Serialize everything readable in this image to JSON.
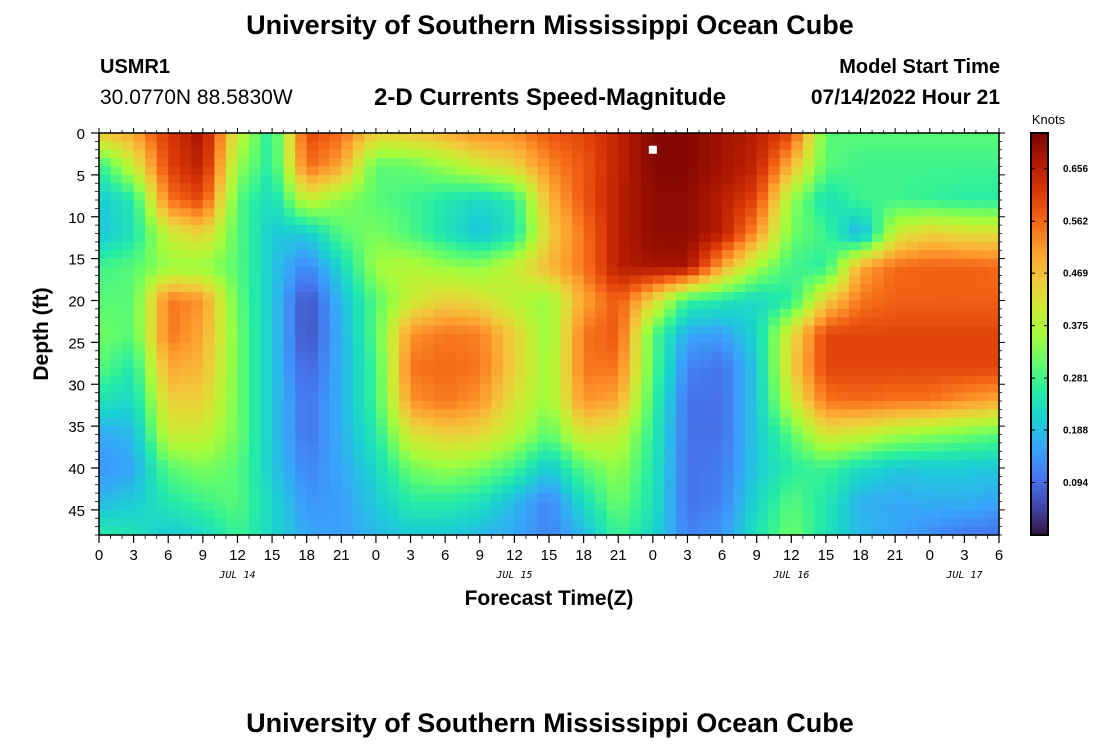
{
  "header": {
    "title": "University of Southern Mississippi Ocean Cube",
    "station_id": "USMR1",
    "coords": "30.0770N  88.5830W",
    "subtitle": "2-D Currents Speed-Magnitude",
    "model_label": "Model Start Time",
    "model_time": "07/14/2022 Hour 21"
  },
  "footer": {
    "title": "University of Southern Mississippi Ocean Cube"
  },
  "chart_data": {
    "type": "heatmap",
    "subtitle": "2-D Currents Speed-Magnitude",
    "xlabel": "Forecast Time(Z)",
    "ylabel": "Depth (ft)",
    "x_hours_range": [
      0,
      78
    ],
    "x_tick_labels": [
      "0",
      "3",
      "6",
      "9",
      "12",
      "15",
      "18",
      "21",
      "0",
      "3",
      "6",
      "9",
      "12",
      "15",
      "18",
      "21",
      "0",
      "3",
      "6",
      "9",
      "12",
      "15",
      "18",
      "21",
      "0",
      "3",
      "6"
    ],
    "x_tick_start_hour": 0,
    "x_tick_step_hours": 3,
    "date_labels": [
      {
        "label": "JUL 14",
        "at_hour": 12
      },
      {
        "label": "JUL 15",
        "at_hour": 36
      },
      {
        "label": "JUL 16",
        "at_hour": 60
      },
      {
        "label": "JUL 17",
        "at_hour": 75
      }
    ],
    "y_ticks": [
      0,
      5,
      10,
      15,
      20,
      25,
      30,
      35,
      40,
      45
    ],
    "y_range": [
      0,
      48
    ],
    "y_inverted": true,
    "colorbar": {
      "unit": "Knots",
      "ticks": [
        "0.656",
        "0.562",
        "0.469",
        "0.375",
        "0.281",
        "0.188",
        "0.094"
      ],
      "range": [
        0.0,
        0.72
      ],
      "colors": [
        "#30123b",
        "#4145ab",
        "#4675ed",
        "#39a2fc",
        "#1bcfd4",
        "#24eca6",
        "#61fc6c",
        "#a4fc3b",
        "#d1e834",
        "#f3c63a",
        "#fe9b2d",
        "#f36315",
        "#d93806",
        "#b11901",
        "#7a0402"
      ]
    },
    "marker": {
      "hour": 48,
      "depth": 2
    },
    "grid": {
      "cols_hours": [
        0,
        3,
        6,
        9,
        12,
        15,
        18,
        21,
        24,
        27,
        30,
        33,
        36,
        39,
        42,
        45,
        48,
        51,
        54,
        57,
        60,
        63,
        66,
        69,
        72,
        75,
        78
      ],
      "rows_depth": [
        0,
        4,
        8,
        12,
        16,
        20,
        24,
        28,
        32,
        36,
        40,
        44,
        48
      ],
      "values": [
        [
          0.46,
          0.5,
          0.62,
          0.68,
          0.4,
          0.25,
          0.6,
          0.56,
          0.45,
          0.46,
          0.49,
          0.53,
          0.53,
          0.58,
          0.6,
          0.65,
          0.71,
          0.71,
          0.68,
          0.66,
          0.6,
          0.3,
          0.3,
          0.3,
          0.3,
          0.3,
          0.3
        ],
        [
          0.26,
          0.4,
          0.6,
          0.66,
          0.35,
          0.25,
          0.56,
          0.5,
          0.3,
          0.31,
          0.35,
          0.4,
          0.44,
          0.53,
          0.58,
          0.65,
          0.71,
          0.71,
          0.68,
          0.65,
          0.48,
          0.3,
          0.28,
          0.28,
          0.28,
          0.28,
          0.28
        ],
        [
          0.2,
          0.25,
          0.55,
          0.6,
          0.3,
          0.22,
          0.4,
          0.34,
          0.3,
          0.28,
          0.25,
          0.22,
          0.26,
          0.48,
          0.58,
          0.66,
          0.7,
          0.7,
          0.66,
          0.6,
          0.35,
          0.23,
          0.28,
          0.28,
          0.27,
          0.26,
          0.26
        ],
        [
          0.19,
          0.24,
          0.4,
          0.45,
          0.3,
          0.2,
          0.2,
          0.3,
          0.33,
          0.29,
          0.24,
          0.19,
          0.24,
          0.45,
          0.55,
          0.66,
          0.7,
          0.7,
          0.66,
          0.52,
          0.32,
          0.28,
          0.16,
          0.4,
          0.45,
          0.43,
          0.43
        ],
        [
          0.28,
          0.3,
          0.35,
          0.35,
          0.3,
          0.2,
          0.12,
          0.22,
          0.36,
          0.38,
          0.35,
          0.34,
          0.4,
          0.48,
          0.55,
          0.66,
          0.68,
          0.68,
          0.5,
          0.36,
          0.28,
          0.26,
          0.5,
          0.56,
          0.57,
          0.57,
          0.56
        ],
        [
          0.3,
          0.3,
          0.55,
          0.52,
          0.31,
          0.2,
          0.06,
          0.18,
          0.3,
          0.4,
          0.45,
          0.43,
          0.38,
          0.35,
          0.5,
          0.58,
          0.44,
          0.27,
          0.25,
          0.22,
          0.26,
          0.45,
          0.55,
          0.57,
          0.57,
          0.57,
          0.57
        ],
        [
          0.32,
          0.3,
          0.55,
          0.5,
          0.32,
          0.2,
          0.06,
          0.17,
          0.3,
          0.52,
          0.55,
          0.54,
          0.45,
          0.34,
          0.55,
          0.58,
          0.3,
          0.16,
          0.15,
          0.22,
          0.43,
          0.6,
          0.6,
          0.6,
          0.6,
          0.6,
          0.6
        ],
        [
          0.3,
          0.25,
          0.5,
          0.48,
          0.32,
          0.2,
          0.08,
          0.17,
          0.28,
          0.55,
          0.56,
          0.55,
          0.45,
          0.35,
          0.55,
          0.55,
          0.3,
          0.12,
          0.1,
          0.2,
          0.45,
          0.6,
          0.6,
          0.6,
          0.6,
          0.6,
          0.6
        ],
        [
          0.24,
          0.22,
          0.45,
          0.45,
          0.32,
          0.2,
          0.1,
          0.17,
          0.28,
          0.52,
          0.55,
          0.52,
          0.42,
          0.35,
          0.52,
          0.5,
          0.28,
          0.1,
          0.1,
          0.2,
          0.4,
          0.55,
          0.56,
          0.55,
          0.55,
          0.52,
          0.5
        ],
        [
          0.16,
          0.18,
          0.4,
          0.4,
          0.32,
          0.2,
          0.1,
          0.17,
          0.25,
          0.42,
          0.45,
          0.44,
          0.38,
          0.3,
          0.42,
          0.4,
          0.26,
          0.1,
          0.1,
          0.2,
          0.3,
          0.42,
          0.4,
          0.36,
          0.34,
          0.32,
          0.3
        ],
        [
          0.14,
          0.16,
          0.3,
          0.33,
          0.3,
          0.2,
          0.12,
          0.16,
          0.22,
          0.32,
          0.35,
          0.33,
          0.28,
          0.2,
          0.3,
          0.35,
          0.25,
          0.1,
          0.11,
          0.2,
          0.26,
          0.28,
          0.23,
          0.2,
          0.2,
          0.2,
          0.2
        ],
        [
          0.18,
          0.2,
          0.25,
          0.28,
          0.3,
          0.22,
          0.14,
          0.15,
          0.2,
          0.26,
          0.26,
          0.24,
          0.18,
          0.12,
          0.23,
          0.32,
          0.24,
          0.1,
          0.12,
          0.22,
          0.3,
          0.25,
          0.17,
          0.16,
          0.17,
          0.17,
          0.16
        ],
        [
          0.26,
          0.24,
          0.2,
          0.22,
          0.28,
          0.22,
          0.16,
          0.15,
          0.18,
          0.2,
          0.2,
          0.18,
          0.16,
          0.12,
          0.18,
          0.28,
          0.22,
          0.12,
          0.14,
          0.24,
          0.32,
          0.24,
          0.18,
          0.16,
          0.13,
          0.11,
          0.1
        ]
      ]
    }
  }
}
